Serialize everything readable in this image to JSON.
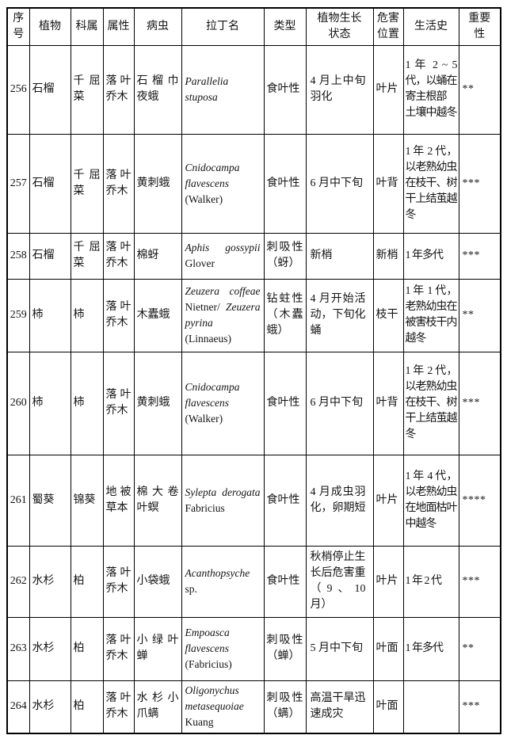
{
  "colors": {
    "background": "#ffffff",
    "border": "#000000",
    "text": "#141414"
  },
  "table": {
    "columns": [
      {
        "key": "no",
        "label": "序号"
      },
      {
        "key": "plant",
        "label": "植物"
      },
      {
        "key": "family",
        "label": "科属"
      },
      {
        "key": "attribute",
        "label": "属性"
      },
      {
        "key": "pest",
        "label": "病虫"
      },
      {
        "key": "latin",
        "label": "拉丁名"
      },
      {
        "key": "type",
        "label": "类型"
      },
      {
        "key": "growth",
        "label": "植物生长\n状态"
      },
      {
        "key": "position",
        "label": "危害\n位置"
      },
      {
        "key": "life",
        "label": "生活史"
      },
      {
        "key": "importance",
        "label": "重要\n性"
      }
    ],
    "rows": [
      {
        "no": "256",
        "plant": "石榴",
        "family": "千屈菜",
        "attribute": "落叶乔木",
        "pest": "石榴巾夜蛾",
        "latin": [
          {
            "text": "Parallelia stuposa",
            "italic": true
          }
        ],
        "type": "食叶性",
        "growth": "4 月上中旬羽化",
        "position": "叶片",
        "life": "1 年 2 ~ 5 代，以蛹在寄主根部\n土壤中越冬",
        "importance": "**"
      },
      {
        "no": "257",
        "plant": "石榴",
        "family": "千屈菜",
        "attribute": "落叶乔木",
        "pest": "黄刺蛾",
        "latin": [
          {
            "text": "Cnidocampa flavescens",
            "italic": true
          },
          {
            "text": " (Walker)",
            "italic": false
          }
        ],
        "type": "食叶性",
        "growth": "6 月中下旬",
        "position": "叶背",
        "life": "1 年 2 代，以老熟幼虫在枝干、树干上结茧越冬",
        "importance": "***"
      },
      {
        "no": "258",
        "plant": "石榴",
        "family": "千屈菜",
        "attribute": "落叶乔木",
        "pest": "棉蚜",
        "latin": [
          {
            "text": "Aphis gossypii",
            "italic": true
          },
          {
            "text": " Glover",
            "italic": false
          }
        ],
        "type": "刺吸性（蚜）",
        "growth": "新梢",
        "position": "新梢",
        "life": "1 年多代",
        "importance": "***"
      },
      {
        "no": "259",
        "plant": "柿",
        "family": "柿",
        "attribute": "落叶乔木",
        "pest": "木蠹蛾",
        "latin": [
          {
            "text": "Zeuzera coffeae",
            "italic": true
          },
          {
            "text": " Nietner/",
            "italic": false
          },
          {
            "text": " Zeuzera pyrina",
            "italic": true
          },
          {
            "text": " (Linnaeus)",
            "italic": false
          }
        ],
        "type": "钻蛀性（木蠹蛾）",
        "growth": "4 月开始活动，下旬化蛹",
        "position": "枝干",
        "life": "1 年 1 代，老熟幼虫在被害枝干内越冬",
        "importance": "**"
      },
      {
        "no": "260",
        "plant": "柿",
        "family": "柿",
        "attribute": "落叶乔木",
        "pest": "黄刺蛾",
        "latin": [
          {
            "text": "Cnidocampa flavescens",
            "italic": true
          },
          {
            "text": " (Walker)",
            "italic": false
          }
        ],
        "type": "食叶性",
        "growth": "6 月中下旬",
        "position": "叶背",
        "life": "1 年 2 代，以老熟幼虫在枝干、树干上结茧越冬",
        "importance": "***"
      },
      {
        "no": "261",
        "plant": "蜀葵",
        "family": "锦葵",
        "attribute": "地被草本",
        "pest": "棉大卷叶螟",
        "latin": [
          {
            "text": "Sylepta derogata",
            "italic": true
          },
          {
            "text": " Fabricius",
            "italic": false
          }
        ],
        "type": "食叶性",
        "growth": "4 月成虫羽化，卵期短",
        "position": "叶片",
        "life": "1 年 4 代，以老熟幼虫在地面枯叶中越冬",
        "importance": "****"
      },
      {
        "no": "262",
        "plant": "水杉",
        "family": "柏",
        "attribute": "落叶乔木",
        "pest": "小袋蛾",
        "latin": [
          {
            "text": "Acanthopsyche",
            "italic": true
          },
          {
            "text": " sp.",
            "italic": false
          }
        ],
        "type": "食叶性",
        "growth": "秋梢停止生长后危害重（9、10 月）",
        "position": "叶片",
        "life": "1 年 2 代",
        "importance": "***"
      },
      {
        "no": "263",
        "plant": "水杉",
        "family": "柏",
        "attribute": "落叶乔木",
        "pest": "小绿叶蝉",
        "latin": [
          {
            "text": "Empoasca flavescens",
            "italic": true
          },
          {
            "text": " (Fabricius)",
            "italic": false
          }
        ],
        "type": "刺吸性（蝉）",
        "growth": "5 月中下旬",
        "position": "叶面",
        "life": "1 年多代",
        "importance": "**"
      },
      {
        "no": "264",
        "plant": "水杉",
        "family": "柏",
        "attribute": "落叶乔木",
        "pest": "水杉小爪螨",
        "latin": [
          {
            "text": "Oligonychus metasequoiae",
            "italic": true
          },
          {
            "text": " Kuang",
            "italic": false
          }
        ],
        "type": "刺吸性（螨）",
        "growth": "高温干旱迅速成灾",
        "position": "叶面",
        "life": "",
        "importance": "***"
      }
    ]
  }
}
